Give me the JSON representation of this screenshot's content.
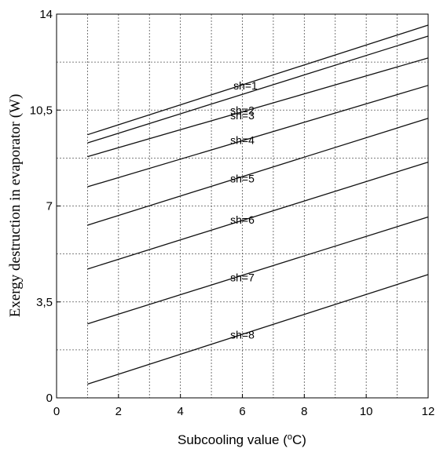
{
  "chart_data": {
    "type": "line",
    "title": "",
    "xlabel_main": "Subcooling value (",
    "xlabel_sup": "o",
    "xlabel_end": "C)",
    "ylabel": "Exergy destruction in evaporator (W)",
    "xlim": [
      0,
      12
    ],
    "ylim": [
      0,
      14
    ],
    "x_ticks": [
      {
        "value": 0,
        "label": "0"
      },
      {
        "value": 2,
        "label": "2"
      },
      {
        "value": 4,
        "label": "4"
      },
      {
        "value": 6,
        "label": "6"
      },
      {
        "value": 8,
        "label": "8"
      },
      {
        "value": 10,
        "label": "10"
      },
      {
        "value": 12,
        "label": "12"
      }
    ],
    "x_grid": [
      1,
      2,
      3,
      4,
      5,
      6,
      7,
      8,
      9,
      10,
      11
    ],
    "y_ticks": [
      {
        "value": 0,
        "label": "0"
      },
      {
        "value": 3.5,
        "label": "3,5"
      },
      {
        "value": 7,
        "label": "7"
      },
      {
        "value": 10.5,
        "label": "10,5"
      },
      {
        "value": 14,
        "label": "14"
      }
    ],
    "y_grid": [
      1.75,
      3.5,
      5.25,
      7,
      8.75,
      10.5,
      12.25
    ],
    "grid": true,
    "series": [
      {
        "name": "sh=1",
        "x": [
          1,
          12
        ],
        "y": [
          9.6,
          13.6
        ],
        "label_x": 6.1,
        "label_y": 11.4
      },
      {
        "name": "sh=2",
        "x": [
          1,
          12
        ],
        "y": [
          9.3,
          13.2
        ],
        "label_x": 6.0,
        "label_y": 10.5
      },
      {
        "name": "sh=3",
        "x": [
          1,
          12
        ],
        "y": [
          8.8,
          12.4
        ],
        "label_x": 6.0,
        "label_y": 10.3
      },
      {
        "name": "sh=4",
        "x": [
          1,
          12
        ],
        "y": [
          7.7,
          11.4
        ],
        "label_x": 6.0,
        "label_y": 9.4
      },
      {
        "name": "sh=5",
        "x": [
          1,
          12
        ],
        "y": [
          6.3,
          10.2
        ],
        "label_x": 6.0,
        "label_y": 8.0
      },
      {
        "name": "sh=6",
        "x": [
          1,
          12
        ],
        "y": [
          4.7,
          8.6
        ],
        "label_x": 6.0,
        "label_y": 6.5
      },
      {
        "name": "sh=7",
        "x": [
          1,
          12
        ],
        "y": [
          2.7,
          6.6
        ],
        "label_x": 6.0,
        "label_y": 4.4
      },
      {
        "name": "sh=8",
        "x": [
          1,
          12
        ],
        "y": [
          0.5,
          4.5
        ],
        "label_x": 6.0,
        "label_y": 2.3
      }
    ]
  }
}
